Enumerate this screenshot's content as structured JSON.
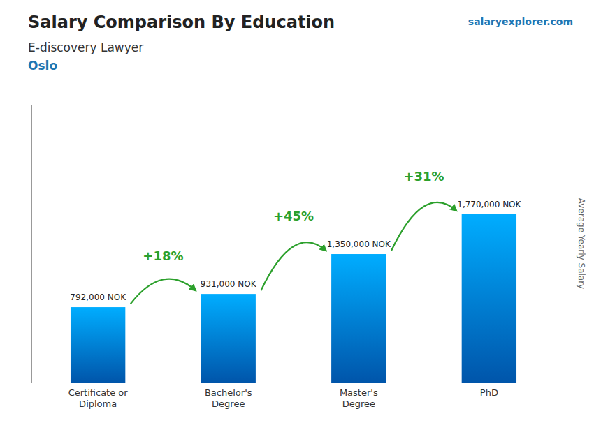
{
  "chart_data": {
    "type": "bar",
    "title": "Salary Comparison By Education",
    "subtitle": "E-discovery Lawyer",
    "location": "Oslo",
    "source": "salaryexplorer.com",
    "ylabel": "Average Yearly Salary",
    "categories": [
      "Certificate or\nDiploma",
      "Bachelor's\nDegree",
      "Master's\nDegree",
      "PhD"
    ],
    "values": [
      792000,
      931000,
      1350000,
      1770000
    ],
    "value_labels": [
      "792,000 NOK",
      "931,000 NOK",
      "1,350,000 NOK",
      "1,770,000 NOK"
    ],
    "data_labels": true,
    "annotations": [
      "+18%",
      "+45%",
      "+31%"
    ],
    "color": "#0055aa",
    "ylim": [
      0,
      2920500
    ],
    "grid": false,
    "tick_labels": "x"
  }
}
